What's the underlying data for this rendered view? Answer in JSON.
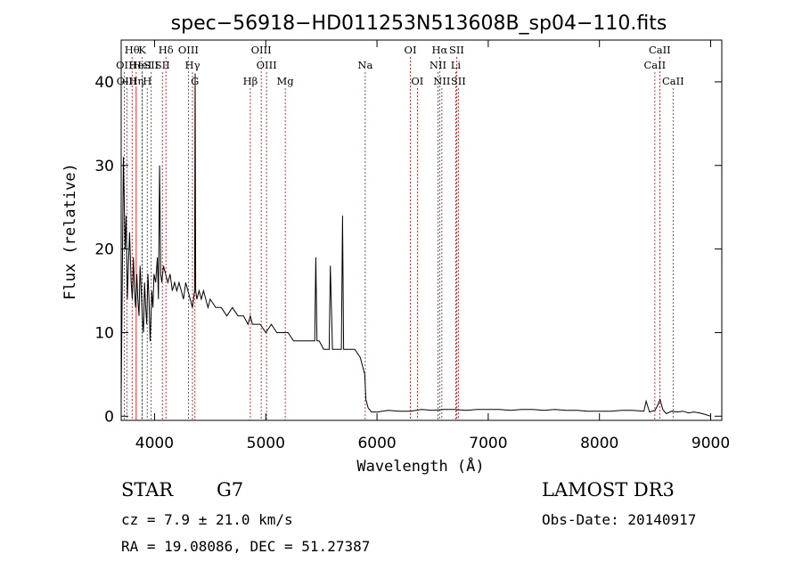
{
  "chart_data": {
    "type": "line",
    "title": "spec−56918−HD011253N513608B_sp04−110.fits",
    "xlabel": "Wavelength (Å)",
    "ylabel": "Flux (relative)",
    "xlim": [
      3700,
      9100
    ],
    "ylim": [
      -0.5,
      45
    ],
    "xticks": [
      4000,
      5000,
      6000,
      7000,
      8000,
      9000
    ],
    "yticks": [
      0,
      10,
      20,
      30,
      40
    ],
    "grid": false,
    "colors": {
      "spectrum": "#000000",
      "lines": "#cc0000"
    },
    "spectrum": {
      "x": [
        3700,
        3720,
        3735,
        3745,
        3755,
        3765,
        3775,
        3790,
        3800,
        3810,
        3820,
        3830,
        3840,
        3850,
        3860,
        3870,
        3880,
        3890,
        3900,
        3910,
        3920,
        3930,
        3940,
        3950,
        3960,
        3968,
        3975,
        3985,
        3995,
        4010,
        4025,
        4035,
        4045,
        4055,
        4065,
        4080,
        4100,
        4120,
        4140,
        4160,
        4180,
        4200,
        4220,
        4240,
        4260,
        4280,
        4300,
        4320,
        4340,
        4360,
        4365,
        4370,
        4380,
        4400,
        4420,
        4440,
        4460,
        4480,
        4500,
        4550,
        4600,
        4650,
        4700,
        4750,
        4800,
        4840,
        4861,
        4880,
        4900,
        4950,
        5000,
        5050,
        5100,
        5150,
        5200,
        5250,
        5300,
        5350,
        5400,
        5440,
        5450,
        5460,
        5480,
        5520,
        5560,
        5570,
        5580,
        5600,
        5640,
        5680,
        5690,
        5700,
        5720,
        5760,
        5800,
        5850,
        5870,
        5890,
        5900,
        5920,
        5950,
        6000,
        6100,
        6200,
        6300,
        6400,
        6500,
        6600,
        6700,
        6800,
        6900,
        7000,
        7100,
        7200,
        7300,
        7400,
        7500,
        7600,
        7700,
        7800,
        7900,
        8000,
        8100,
        8200,
        8300,
        8400,
        8420,
        8450,
        8500,
        8520,
        8545,
        8570,
        8600,
        8650,
        8700,
        8750,
        8800,
        8850,
        8900,
        8950,
        9000
      ],
      "y": [
        2,
        31,
        20,
        24,
        14,
        18,
        22,
        16,
        14,
        19,
        15,
        13,
        17,
        14,
        12,
        18,
        15,
        12,
        10,
        16,
        13,
        11,
        17,
        14,
        9,
        12,
        15,
        13,
        17,
        16,
        19,
        14,
        30,
        17,
        16,
        18,
        17,
        16,
        17,
        15,
        16,
        15,
        16,
        15,
        14,
        16,
        15,
        14,
        13,
        15,
        41,
        15,
        14,
        15,
        14,
        15,
        14,
        13,
        14,
        13,
        13,
        12,
        13,
        12,
        12,
        11,
        12,
        11,
        11,
        11,
        10,
        11,
        10,
        10,
        10,
        9,
        9,
        9,
        9,
        9,
        19,
        9,
        9,
        8,
        8,
        8,
        18,
        8,
        8,
        8,
        24,
        8,
        8,
        8,
        8,
        7,
        6,
        5,
        2,
        1,
        0.5,
        0.5,
        0.7,
        0.6,
        0.6,
        0.8,
        0.7,
        0.8,
        0.8,
        0.7,
        0.8,
        0.8,
        0.8,
        0.7,
        0.8,
        0.8,
        0.7,
        0.8,
        0.7,
        0.7,
        0.6,
        0.6,
        0.6,
        0.7,
        0.7,
        0.6,
        1.8,
        0.5,
        0.7,
        1.2,
        2.0,
        0.8,
        0.3,
        0.6,
        0.5,
        0.6,
        0.4,
        0.5,
        0.4,
        0.2,
        0.0
      ]
    },
    "lines": [
      {
        "label": "Hθ",
        "x": 3798,
        "row": 0
      },
      {
        "label": "OII",
        "x": 3727,
        "row": 1
      },
      {
        "label": "OIII",
        "x": 3750,
        "row": 2
      },
      {
        "label": "He",
        "x": 3835,
        "row": 1
      },
      {
        "label": "Hη",
        "x": 3835,
        "row": 2
      },
      {
        "label": "K",
        "x": 3889,
        "row": 0
      },
      {
        "label": "HeI",
        "x": 3889,
        "row": 1
      },
      {
        "label": "H",
        "x": 3934,
        "row": 2
      },
      {
        "label": "SII",
        "x": 3970,
        "row": 1
      },
      {
        "label": "Hδ",
        "x": 4102,
        "row": 0
      },
      {
        "label": "SII",
        "x": 4070,
        "row": 1
      },
      {
        "label": "OIII",
        "x": 4304,
        "row": 0
      },
      {
        "label": "Hγ",
        "x": 4341,
        "row": 1
      },
      {
        "label": "G",
        "x": 4363,
        "row": 2
      },
      {
        "label": "Hβ",
        "x": 4861,
        "row": 2
      },
      {
        "label": "OIII",
        "x": 4959,
        "row": 0
      },
      {
        "label": "OIII",
        "x": 5007,
        "row": 1
      },
      {
        "label": "Mg",
        "x": 5175,
        "row": 2
      },
      {
        "label": "Na",
        "x": 5894,
        "row": 1
      },
      {
        "label": "OI",
        "x": 6300,
        "row": 0
      },
      {
        "label": "OI",
        "x": 6363,
        "row": 2
      },
      {
        "label": "Hα",
        "x": 6563,
        "row": 0
      },
      {
        "label": "NII",
        "x": 6548,
        "row": 1
      },
      {
        "label": "NII",
        "x": 6583,
        "row": 2
      },
      {
        "label": "SII",
        "x": 6716,
        "row": 0
      },
      {
        "label": "Li",
        "x": 6708,
        "row": 1
      },
      {
        "label": "SII",
        "x": 6731,
        "row": 2
      },
      {
        "label": "CaII",
        "x": 8498,
        "row": 1
      },
      {
        "label": "CaII",
        "x": 8542,
        "row": 0
      },
      {
        "label": "CaII",
        "x": 8662,
        "row": 2
      }
    ]
  },
  "info": {
    "class_label": "STAR",
    "subclass": "G7",
    "survey": "LAMOST DR3",
    "cz": "cz = 7.9 ± 21.0 km/s",
    "obs_date": "Obs-Date: 20140917",
    "coords": "RA =  19.08086, DEC =  51.27387"
  }
}
